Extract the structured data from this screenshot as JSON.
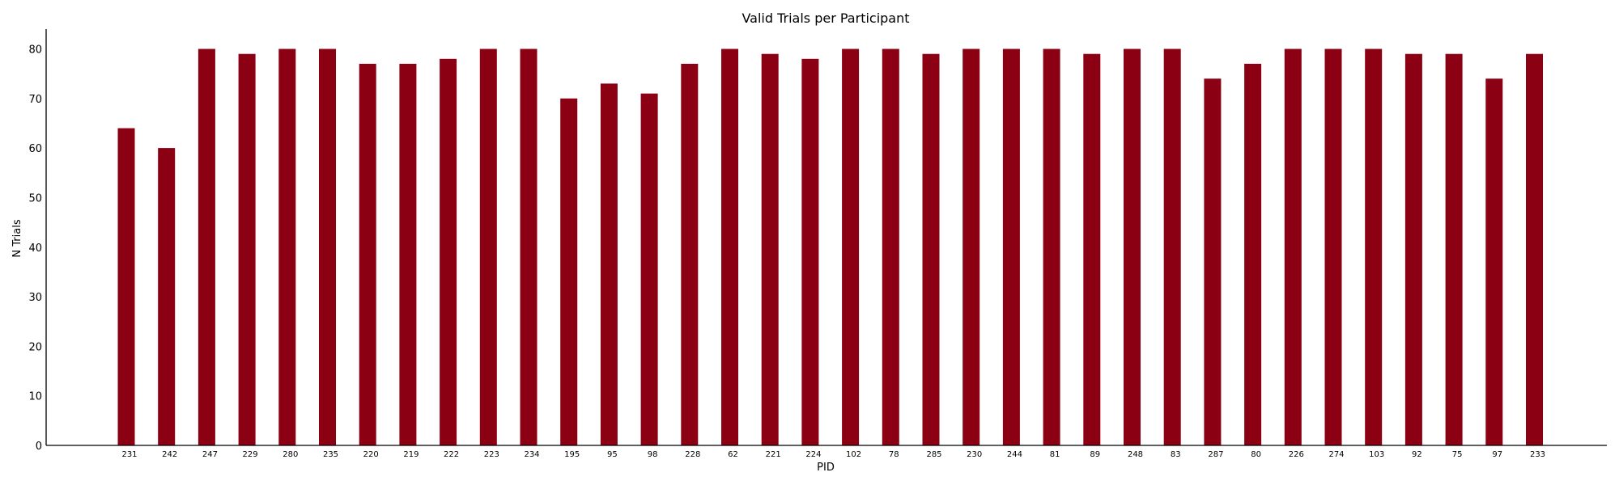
{
  "colors": {
    "bar": "#8b0012",
    "axis": "#000000",
    "background": "#ffffff"
  },
  "chart_data": {
    "type": "bar",
    "title": "Valid Trials per Participant",
    "xlabel": "PID",
    "ylabel": "N Trials",
    "ylim": [
      0,
      84
    ],
    "yticks": [
      0,
      10,
      20,
      30,
      40,
      50,
      60,
      70,
      80
    ],
    "grid": false,
    "categories": [
      "231",
      "242",
      "247",
      "229",
      "280",
      "235",
      "220",
      "219",
      "222",
      "223",
      "234",
      "195",
      "95",
      "98",
      "228",
      "62",
      "221",
      "224",
      "102",
      "78",
      "285",
      "230",
      "244",
      "81",
      "89",
      "248",
      "83",
      "287",
      "80",
      "226",
      "274",
      "103",
      "92",
      "75",
      "97",
      "233"
    ],
    "values": [
      64,
      60,
      80,
      79,
      80,
      80,
      77,
      77,
      78,
      80,
      80,
      70,
      73,
      71,
      77,
      80,
      79,
      78,
      80,
      80,
      79,
      80,
      80,
      80,
      79,
      80,
      80,
      74,
      77,
      80,
      80,
      80,
      79,
      79,
      74,
      79
    ]
  }
}
